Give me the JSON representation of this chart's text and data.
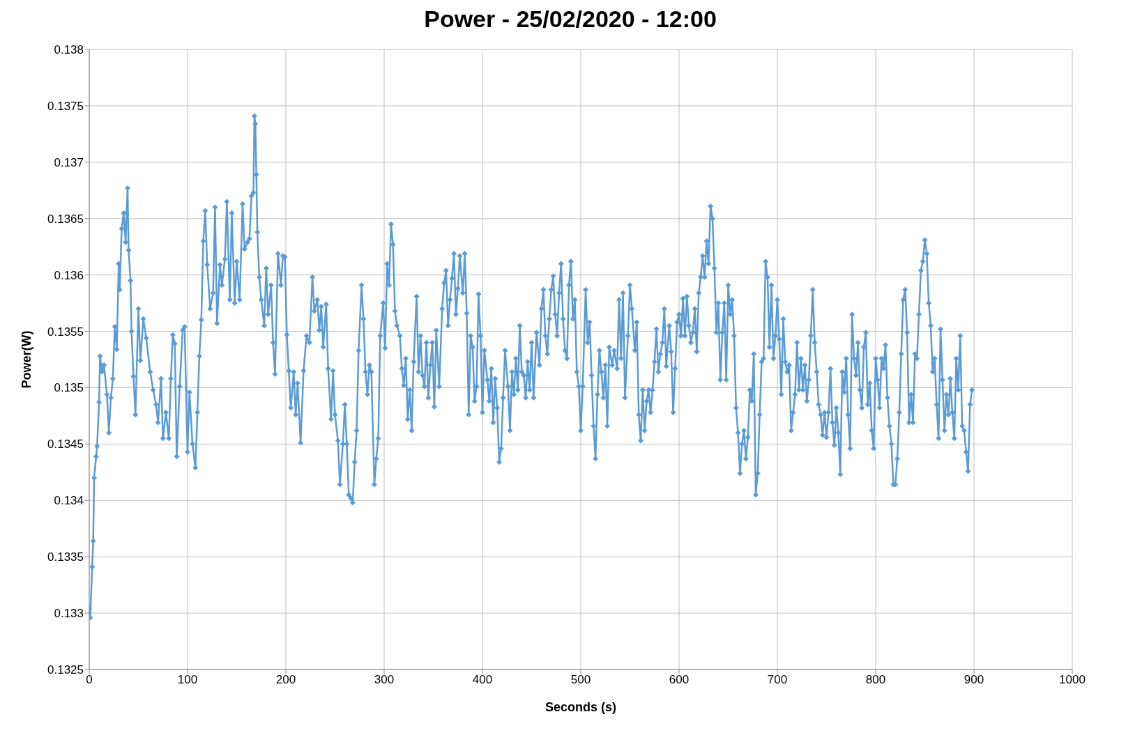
{
  "chart_data": {
    "type": "line",
    "title": "Power - 25/02/2020 - 12:00",
    "xlabel": "Seconds (s)",
    "ylabel": "Power(W)",
    "xlim": [
      0,
      1000
    ],
    "xticks": [
      0,
      100,
      200,
      300,
      400,
      500,
      600,
      700,
      800,
      900,
      1000
    ],
    "ylim": [
      0.1325,
      0.138
    ],
    "yticks": [
      0.1325,
      0.133,
      0.1335,
      0.134,
      0.1345,
      0.135,
      0.1355,
      0.136,
      0.1365,
      0.137,
      0.1375,
      0.138
    ],
    "grid": true,
    "marker": "diamond",
    "line_style": "solid",
    "series": [
      {
        "color": "#5b9bd5",
        "x": [
          0,
          1,
          3,
          4,
          5,
          7,
          8,
          10,
          11,
          13,
          15,
          18,
          20,
          22,
          24,
          26,
          28,
          30,
          31,
          33,
          35,
          37,
          38,
          39,
          40,
          42,
          43,
          45,
          47,
          50,
          52,
          55,
          58,
          62,
          65,
          68,
          70,
          73,
          75,
          78,
          81,
          83,
          85,
          87,
          89,
          92,
          95,
          97,
          100,
          102,
          105,
          108,
          110,
          112,
          114,
          116,
          118,
          120,
          123,
          126,
          128,
          130,
          133,
          135,
          138,
          140,
          143,
          145,
          148,
          150,
          153,
          156,
          158,
          161,
          163,
          165,
          167,
          168,
          169,
          170,
          171,
          173,
          175,
          178,
          180,
          182,
          185,
          187,
          189,
          192,
          195,
          197,
          199,
          201,
          203,
          205,
          208,
          210,
          212,
          215,
          218,
          221,
          224,
          227,
          229,
          232,
          234,
          236,
          238,
          241,
          243,
          246,
          248,
          250,
          253,
          255,
          258,
          260,
          262,
          264,
          266,
          268,
          270,
          272,
          274,
          277,
          279,
          281,
          283,
          285,
          287,
          290,
          292,
          294,
          296,
          299,
          301,
          303,
          305,
          307,
          309,
          311,
          313,
          316,
          318,
          320,
          322,
          324,
          326,
          328,
          330,
          333,
          335,
          337,
          339,
          341,
          343,
          345,
          347,
          349,
          351,
          353,
          356,
          359,
          361,
          363,
          365,
          367,
          369,
          371,
          373,
          375,
          377,
          380,
          382,
          384,
          386,
          388,
          390,
          392,
          394,
          396,
          398,
          400,
          402,
          405,
          407,
          409,
          411,
          413,
          415,
          417,
          419,
          421,
          423,
          426,
          428,
          430,
          432,
          434,
          436,
          438,
          440,
          442,
          444,
          446,
          448,
          450,
          452,
          455,
          458,
          460,
          462,
          464,
          466,
          468,
          470,
          472,
          474,
          476,
          478,
          480,
          482,
          484,
          486,
          488,
          490,
          492,
          494,
          496,
          498,
          500,
          502,
          505,
          507,
          509,
          511,
          513,
          515,
          517,
          519,
          521,
          523,
          525,
          527,
          529,
          532,
          534,
          537,
          539,
          541,
          543,
          545,
          548,
          550,
          552,
          555,
          557,
          559,
          561,
          563,
          565,
          567,
          569,
          571,
          573,
          575,
          577,
          579,
          581,
          583,
          585,
          587,
          590,
          592,
          594,
          596,
          598,
          600,
          602,
          604,
          606,
          608,
          610,
          612,
          614,
          616,
          618,
          620,
          622,
          624,
          626,
          628,
          630,
          632,
          634,
          636,
          638,
          640,
          642,
          644,
          646,
          648,
          650,
          652,
          654,
          656,
          658,
          660,
          662,
          664,
          666,
          668,
          670,
          672,
          674,
          676,
          678,
          680,
          682,
          684,
          686,
          688,
          690,
          692,
          694,
          696,
          698,
          700,
          702,
          704,
          706,
          708,
          710,
          712,
          714,
          716,
          718,
          720,
          722,
          724,
          726,
          728,
          730,
          732,
          734,
          736,
          738,
          740,
          742,
          744,
          746,
          748,
          750,
          752,
          754,
          756,
          758,
          760,
          762,
          764,
          766,
          768,
          770,
          772,
          774,
          776,
          778,
          780,
          782,
          784,
          786,
          788,
          790,
          792,
          794,
          796,
          798,
          800,
          802,
          804,
          806,
          808,
          810,
          812,
          814,
          816,
          818,
          820,
          822,
          824,
          826,
          828,
          830,
          832,
          834,
          836,
          838,
          840,
          842,
          844,
          846,
          848,
          850,
          852,
          854,
          856,
          858,
          860,
          862,
          864,
          866,
          868,
          870,
          872,
          874,
          876,
          878,
          880,
          882,
          884,
          886,
          888,
          890,
          892,
          894,
          896,
          898
        ],
        "values": [
          0.13304,
          0.13296,
          0.13341,
          0.13364,
          0.1342,
          0.13439,
          0.13448,
          0.13487,
          0.13528,
          0.13514,
          0.1352,
          0.13494,
          0.1346,
          0.13491,
          0.13508,
          0.13554,
          0.13534,
          0.1361,
          0.13587,
          0.13641,
          0.13655,
          0.13629,
          0.13655,
          0.13677,
          0.13622,
          0.13595,
          0.1355,
          0.1351,
          0.13476,
          0.1357,
          0.13524,
          0.13561,
          0.13544,
          0.13514,
          0.13498,
          0.13485,
          0.13469,
          0.13508,
          0.13455,
          0.13478,
          0.13455,
          0.13508,
          0.13547,
          0.13539,
          0.13439,
          0.13501,
          0.13551,
          0.13554,
          0.13443,
          0.13496,
          0.1345,
          0.13429,
          0.13478,
          0.13528,
          0.1356,
          0.1363,
          0.13657,
          0.13609,
          0.1357,
          0.13584,
          0.1366,
          0.13557,
          0.13609,
          0.13591,
          0.13614,
          0.13665,
          0.13578,
          0.13655,
          0.13575,
          0.13612,
          0.13578,
          0.13663,
          0.13623,
          0.13629,
          0.13632,
          0.1367,
          0.13673,
          0.13741,
          0.13734,
          0.13689,
          0.13638,
          0.13598,
          0.13578,
          0.13555,
          0.13606,
          0.13565,
          0.13591,
          0.1354,
          0.13512,
          0.13619,
          0.13591,
          0.13617,
          0.13616,
          0.13547,
          0.13515,
          0.13482,
          0.13514,
          0.13476,
          0.13504,
          0.13451,
          0.13515,
          0.13546,
          0.1354,
          0.13598,
          0.13568,
          0.13578,
          0.13551,
          0.13572,
          0.13536,
          0.13574,
          0.13517,
          0.13472,
          0.13515,
          0.13476,
          0.13453,
          0.13414,
          0.1345,
          0.13485,
          0.1345,
          0.13405,
          0.13402,
          0.13398,
          0.13434,
          0.13462,
          0.13533,
          0.13591,
          0.13561,
          0.13514,
          0.13494,
          0.1352,
          0.13514,
          0.13414,
          0.13437,
          0.13455,
          0.13546,
          0.13575,
          0.13535,
          0.1361,
          0.13591,
          0.13645,
          0.13627,
          0.13568,
          0.13555,
          0.13546,
          0.13517,
          0.13502,
          0.13526,
          0.13472,
          0.13498,
          0.13462,
          0.13523,
          0.13581,
          0.13514,
          0.13546,
          0.13511,
          0.13501,
          0.1354,
          0.13491,
          0.1352,
          0.1354,
          0.13483,
          0.13551,
          0.13501,
          0.1357,
          0.13593,
          0.13604,
          0.13555,
          0.13578,
          0.13597,
          0.13619,
          0.13565,
          0.13588,
          0.13617,
          0.13584,
          0.13619,
          0.13566,
          0.13476,
          0.13546,
          0.13536,
          0.13488,
          0.13501,
          0.13583,
          0.13546,
          0.13478,
          0.13533,
          0.13507,
          0.13488,
          0.13517,
          0.13469,
          0.13508,
          0.13482,
          0.13434,
          0.13446,
          0.13491,
          0.13533,
          0.13501,
          0.13462,
          0.13514,
          0.13494,
          0.13526,
          0.13498,
          0.13555,
          0.13514,
          0.13511,
          0.13491,
          0.13523,
          0.13498,
          0.1354,
          0.13491,
          0.13549,
          0.1352,
          0.1357,
          0.13587,
          0.13546,
          0.1353,
          0.13561,
          0.13587,
          0.13599,
          0.13565,
          0.13546,
          0.13584,
          0.1361,
          0.13561,
          0.13533,
          0.13526,
          0.13591,
          0.13612,
          0.13561,
          0.13578,
          0.13514,
          0.13501,
          0.13462,
          0.13501,
          0.13587,
          0.1354,
          0.13558,
          0.13511,
          0.13466,
          0.13437,
          0.13494,
          0.13533,
          0.13514,
          0.13491,
          0.1352,
          0.13466,
          0.13536,
          0.1352,
          0.13533,
          0.13517,
          0.13578,
          0.13526,
          0.13584,
          0.13491,
          0.13546,
          0.13591,
          0.1357,
          0.13533,
          0.13558,
          0.13476,
          0.13453,
          0.13498,
          0.13462,
          0.13488,
          0.13498,
          0.13478,
          0.13498,
          0.13523,
          0.13552,
          0.13514,
          0.1353,
          0.1354,
          0.1357,
          0.13519,
          0.13555,
          0.13532,
          0.13478,
          0.13517,
          0.13558,
          0.13565,
          0.13546,
          0.13579,
          0.13546,
          0.13581,
          0.13555,
          0.1354,
          0.13549,
          0.1357,
          0.13532,
          0.13584,
          0.13598,
          0.13617,
          0.13598,
          0.1363,
          0.1361,
          0.13661,
          0.1365,
          0.13606,
          0.13549,
          0.13575,
          0.13507,
          0.13549,
          0.13575,
          0.13507,
          0.13591,
          0.13565,
          0.13578,
          0.13546,
          0.13482,
          0.1346,
          0.13424,
          0.1345,
          0.13462,
          0.13437,
          0.13456,
          0.13498,
          0.13488,
          0.1353,
          0.13405,
          0.13424,
          0.13476,
          0.13523,
          0.13526,
          0.13612,
          0.13598,
          0.13536,
          0.13591,
          0.13526,
          0.13546,
          0.13578,
          0.13543,
          0.13494,
          0.13561,
          0.13523,
          0.13514,
          0.1352,
          0.13462,
          0.13478,
          0.13494,
          0.1354,
          0.13498,
          0.13526,
          0.13498,
          0.1352,
          0.13488,
          0.13507,
          0.13546,
          0.13587,
          0.1354,
          0.13514,
          0.13485,
          0.13476,
          0.13458,
          0.13478,
          0.13456,
          0.13478,
          0.13517,
          0.13469,
          0.13449,
          0.13482,
          0.1346,
          0.13423,
          0.13514,
          0.13496,
          0.13526,
          0.13476,
          0.13446,
          0.13565,
          0.13526,
          0.13511,
          0.1354,
          0.13498,
          0.13482,
          0.13536,
          0.13549,
          0.13485,
          0.13504,
          0.13462,
          0.13446,
          0.13526,
          0.13507,
          0.13482,
          0.13526,
          0.13517,
          0.13538,
          0.13491,
          0.13466,
          0.1345,
          0.13414,
          0.13414,
          0.13437,
          0.13478,
          0.1353,
          0.13578,
          0.13587,
          0.13549,
          0.13469,
          0.13494,
          0.13469,
          0.1353,
          0.13526,
          0.13565,
          0.13604,
          0.13612,
          0.13631,
          0.13619,
          0.13575,
          0.13555,
          0.13514,
          0.13526,
          0.13485,
          0.13455,
          0.13552,
          0.13507,
          0.13462,
          0.13494,
          0.13476,
          0.13508,
          0.13478,
          0.13455,
          0.13526,
          0.13498,
          0.13546,
          0.13466,
          0.13462,
          0.13443,
          0.13426,
          0.13485,
          0.13498
        ]
      }
    ]
  }
}
